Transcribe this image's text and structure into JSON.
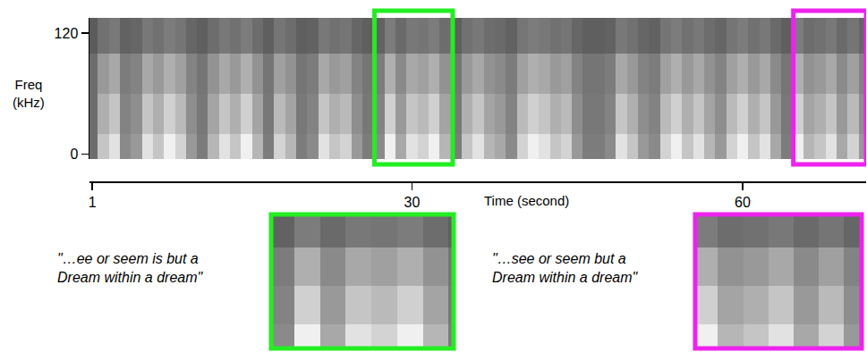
{
  "chart_data": {
    "type": "heatmap",
    "xlabel": "Time (second)",
    "ylabel": "Freq (kHz)",
    "xlim": [
      0.75,
      71.2
    ],
    "xticks": [
      1,
      30,
      60
    ],
    "ylim": [
      -5,
      135
    ],
    "yticks": [
      0,
      120
    ],
    "zlim": [
      0.15,
      0.85
    ],
    "x": [
      1,
      2,
      3,
      4,
      5,
      6,
      7,
      8,
      9,
      10,
      11,
      12,
      13,
      14,
      15,
      16,
      17,
      18,
      19,
      20,
      21,
      22,
      23,
      24,
      25,
      26,
      27,
      28,
      29,
      30,
      31,
      32,
      33,
      34,
      35,
      36,
      37,
      38,
      39,
      40,
      41,
      42,
      43,
      44,
      45,
      46,
      47,
      48,
      49,
      50,
      51,
      52,
      53,
      54,
      55,
      56,
      57,
      58,
      59,
      60,
      61,
      62,
      63,
      64,
      65,
      66,
      67,
      68,
      69,
      70,
      71
    ],
    "y": [
      0,
      40,
      80,
      120
    ],
    "z": [
      [
        0.45,
        0.69,
        0.77,
        0.53,
        0.57,
        0.77,
        0.69,
        0.81,
        0.73,
        0.57,
        0.49,
        0.65,
        0.77,
        0.69,
        0.81,
        0.65,
        0.49,
        0.73,
        0.65,
        0.49,
        0.53,
        0.77,
        0.69,
        0.73,
        0.57,
        0.49,
        0.53,
        0.81,
        0.61,
        0.77,
        0.73,
        0.81,
        0.65,
        0.49,
        0.69,
        0.77,
        0.65,
        0.61,
        0.53,
        0.73,
        0.81,
        0.77,
        0.69,
        0.73,
        0.57,
        0.49,
        0.49,
        0.53,
        0.77,
        0.69,
        0.57,
        0.53,
        0.73,
        0.81,
        0.69,
        0.77,
        0.65,
        0.57,
        0.73,
        0.81,
        0.69,
        0.77,
        0.61,
        0.49,
        0.81,
        0.65,
        0.69,
        0.77,
        0.61,
        0.73,
        0.57
      ],
      [
        0.45,
        0.63,
        0.69,
        0.51,
        0.54,
        0.69,
        0.63,
        0.72,
        0.66,
        0.54,
        0.48,
        0.6,
        0.69,
        0.63,
        0.72,
        0.6,
        0.48,
        0.66,
        0.6,
        0.48,
        0.51,
        0.69,
        0.63,
        0.66,
        0.54,
        0.48,
        0.51,
        0.72,
        0.57,
        0.69,
        0.66,
        0.72,
        0.6,
        0.48,
        0.63,
        0.69,
        0.6,
        0.57,
        0.51,
        0.66,
        0.72,
        0.69,
        0.63,
        0.66,
        0.54,
        0.48,
        0.48,
        0.51,
        0.69,
        0.63,
        0.54,
        0.51,
        0.66,
        0.72,
        0.63,
        0.69,
        0.6,
        0.54,
        0.66,
        0.72,
        0.63,
        0.69,
        0.57,
        0.48,
        0.72,
        0.6,
        0.63,
        0.69,
        0.57,
        0.66,
        0.54
      ],
      [
        0.45,
        0.57,
        0.61,
        0.49,
        0.51,
        0.61,
        0.57,
        0.63,
        0.59,
        0.51,
        0.47,
        0.55,
        0.61,
        0.57,
        0.63,
        0.55,
        0.47,
        0.59,
        0.55,
        0.47,
        0.49,
        0.61,
        0.57,
        0.59,
        0.51,
        0.47,
        0.49,
        0.63,
        0.53,
        0.61,
        0.59,
        0.63,
        0.55,
        0.47,
        0.57,
        0.61,
        0.55,
        0.53,
        0.49,
        0.59,
        0.63,
        0.61,
        0.57,
        0.59,
        0.51,
        0.47,
        0.47,
        0.49,
        0.61,
        0.57,
        0.51,
        0.49,
        0.59,
        0.63,
        0.57,
        0.61,
        0.55,
        0.51,
        0.59,
        0.63,
        0.57,
        0.61,
        0.53,
        0.47,
        0.63,
        0.55,
        0.57,
        0.61,
        0.53,
        0.59,
        0.51
      ],
      [
        0.4,
        0.46,
        0.48,
        0.42,
        0.43,
        0.48,
        0.46,
        0.49,
        0.47,
        0.43,
        0.41,
        0.45,
        0.48,
        0.46,
        0.49,
        0.45,
        0.41,
        0.47,
        0.45,
        0.41,
        0.42,
        0.48,
        0.46,
        0.47,
        0.43,
        0.41,
        0.42,
        0.49,
        0.44,
        0.48,
        0.47,
        0.49,
        0.45,
        0.41,
        0.46,
        0.48,
        0.45,
        0.44,
        0.42,
        0.47,
        0.49,
        0.48,
        0.46,
        0.47,
        0.43,
        0.41,
        0.41,
        0.42,
        0.48,
        0.46,
        0.43,
        0.42,
        0.47,
        0.49,
        0.46,
        0.48,
        0.45,
        0.43,
        0.47,
        0.49,
        0.46,
        0.48,
        0.44,
        0.41,
        0.49,
        0.45,
        0.46,
        0.48,
        0.44,
        0.47,
        0.43
      ]
    ],
    "highlights": [
      {
        "color": "#22ee22",
        "xlim": [
          26.6,
          33.7
        ],
        "caption": [
          "\"…ee or seem is but a",
          "Dream within a dream\""
        ]
      },
      {
        "color": "#ee22ee",
        "xlim": [
          64.6,
          71.2
        ],
        "caption": [
          "\"…see or seem but a",
          "Dream within a dream\""
        ]
      }
    ]
  }
}
